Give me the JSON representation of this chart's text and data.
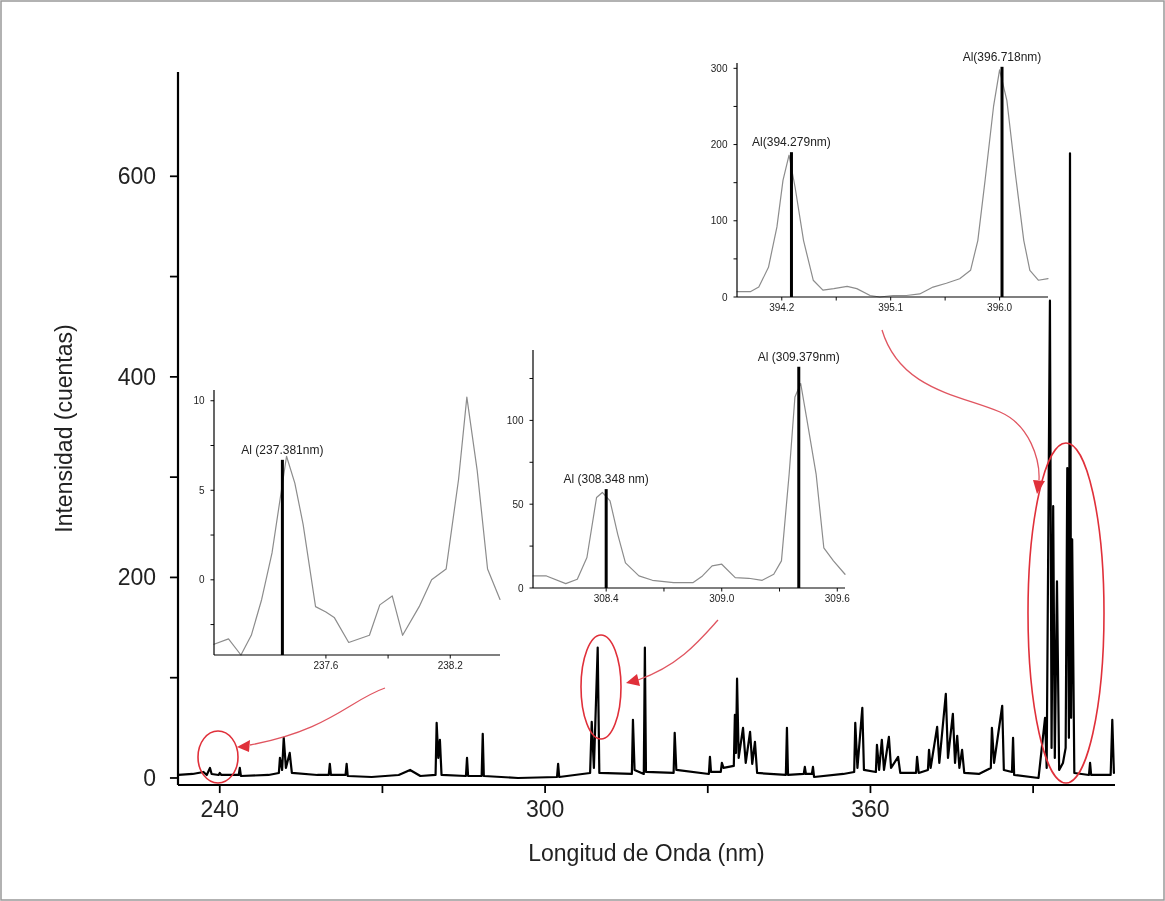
{
  "chart_data": [
    {
      "type": "line",
      "xlabel": "Longitud de Onda (nm)",
      "ylabel": "Intensidad (cuentas)",
      "xlim": [
        232.3,
        405.1
      ],
      "ylim": [
        -7,
        704
      ],
      "xticks": [
        240,
        {
          "value": 270,
          "label": null
        },
        300,
        {
          "value": 330,
          "label": null
        },
        360,
        {
          "value": 390,
          "label": null
        }
      ],
      "yticks": [
        0,
        {
          "value": 100,
          "label": null
        },
        200,
        {
          "value": 300,
          "label": null
        },
        400,
        {
          "value": 500,
          "label": null
        },
        600
      ],
      "series": [
        {
          "color": "#000000",
          "x": [
            232.4,
            235.0,
            237.0,
            237.6,
            238.2,
            238.5,
            239.8,
            240.0,
            240.3,
            243.5,
            243.7,
            243.9,
            249.0,
            250.9,
            251.1,
            251.5,
            251.8,
            252.2,
            252.9,
            253.3,
            258,
            260.1,
            260.3,
            260.5,
            263.2,
            263.4,
            263.6,
            268,
            273,
            275.1,
            277,
            279.8,
            280.0,
            280.3,
            280.6,
            280.9,
            285.4,
            285.6,
            285.8,
            288.3,
            288.5,
            288.7,
            295,
            302.2,
            302.4,
            302.6,
            308.3,
            308.6,
            309.0,
            309.7,
            310.0,
            316.0,
            316.2,
            316.5,
            318.2,
            318.4,
            318.6,
            323.7,
            323.9,
            324.2,
            330.2,
            330.4,
            330.6,
            332.4,
            332.6,
            332.9,
            334.8,
            335.0,
            335.2,
            335.4,
            335.7,
            336.5,
            337.0,
            337.8,
            338.2,
            338.7,
            339.1,
            344.4,
            344.6,
            344.8,
            347.7,
            347.9,
            348.1,
            349.2,
            349.4,
            349.6,
            355,
            357.0,
            357.2,
            357.6,
            358.5,
            358.8,
            361.0,
            361.2,
            361.6,
            362.1,
            362.5,
            363.4,
            363.8,
            365.1,
            365.5,
            368.4,
            368.6,
            368.9,
            370.6,
            370.8,
            371.1,
            372.3,
            372.7,
            373.9,
            374.3,
            375.2,
            375.6,
            376.0,
            376.4,
            376.9,
            377.3,
            380,
            382.2,
            382.4,
            382.8,
            384.3,
            384.6,
            386.1,
            386.3,
            386.5,
            391,
            392.2,
            392.5,
            393.1,
            393.4,
            393.7,
            394.0,
            394.4,
            394.8,
            395.5,
            396.0,
            396.3,
            396.6,
            396.8,
            397.0,
            397.2,
            397.6,
            400.3,
            400.5,
            400.7,
            404.3,
            404.6,
            404.9
          ],
          "values": [
            3,
            4,
            6,
            3,
            10,
            4,
            3,
            5,
            3,
            3,
            10,
            2,
            3,
            5,
            20,
            8,
            40,
            10,
            25,
            5,
            3,
            3,
            14,
            3,
            3,
            14,
            2,
            1,
            3,
            8,
            2,
            3,
            55,
            20,
            38,
            3,
            2,
            20,
            2,
            2,
            44,
            2,
            0,
            1,
            14,
            1,
            5,
            56,
            10,
            130,
            5,
            4,
            58,
            8,
            4,
            130,
            6,
            5,
            45,
            8,
            4,
            21,
            6,
            6,
            15,
            10,
            12,
            63,
            25,
            99,
            20,
            50,
            15,
            46,
            14,
            36,
            5,
            3,
            50,
            3,
            4,
            11,
            4,
            4,
            11,
            1,
            4,
            6,
            55,
            10,
            70,
            8,
            6,
            33,
            8,
            38,
            8,
            41,
            10,
            21,
            5,
            5,
            21,
            5,
            8,
            28,
            10,
            51,
            15,
            84,
            20,
            64,
            15,
            42,
            10,
            28,
            5,
            4,
            10,
            50,
            15,
            72,
            8,
            6,
            40,
            3,
            0,
            60,
            10,
            476,
            30,
            271,
            20,
            196,
            8,
            15,
            30,
            309,
            40,
            623,
            60,
            238,
            5,
            3,
            15,
            3,
            3,
            58,
            5
          ]
        }
      ]
    },
    {
      "type": "line",
      "xlim": [
        237.06,
        238.44
      ],
      "ylim": [
        -4.2,
        10.6
      ],
      "xticks": [
        237.6,
        {
          "value": 237.9,
          "label": null
        },
        238.2
      ],
      "yticks": [
        {
          "value": -2.5,
          "label": null
        },
        0,
        {
          "value": 2.5,
          "label": null
        },
        5,
        {
          "value": 7.5,
          "label": null
        },
        10
      ],
      "annotations": [
        {
          "text": "Al (237.381nm)",
          "x": 237.39,
          "y": 6.7
        }
      ],
      "series": [
        {
          "color": "#8c8c8c",
          "x": [
            237.06,
            237.13,
            237.19,
            237.24,
            237.29,
            237.34,
            237.41,
            237.45,
            237.49,
            237.55,
            237.6,
            237.64,
            237.71,
            237.81,
            237.86,
            237.92,
            237.97,
            238.05,
            238.11,
            238.18,
            238.24,
            238.28,
            238.33,
            238.38,
            238.44
          ],
          "values": [
            -3.6,
            -3.3,
            -4.2,
            -3.1,
            -1.1,
            1.5,
            6.9,
            5.4,
            3.1,
            -1.5,
            -1.8,
            -2.1,
            -3.5,
            -3.1,
            -1.4,
            -0.9,
            -3.1,
            -1.5,
            0,
            0.6,
            5.6,
            10.2,
            6.1,
            0.6,
            -1.1
          ]
        },
        {
          "type": "bar",
          "color": "#000000",
          "x": [
            237.39
          ],
          "base": [
            -4.2
          ],
          "values": [
            10.9
          ]
        }
      ]
    },
    {
      "type": "line",
      "xlim": [
        308.02,
        309.64
      ],
      "ylim": [
        0,
        142
      ],
      "xticks": [
        308.4,
        {
          "value": 308.7,
          "label": null
        },
        {
          "value": 309,
          "label": "309.0"
        },
        {
          "value": 309.3,
          "label": null
        },
        309.6
      ],
      "yticks": [
        0,
        {
          "value": 25,
          "label": null
        },
        50,
        {
          "value": 75,
          "label": null
        },
        100,
        {
          "value": 125,
          "label": null
        }
      ],
      "annotations": [
        {
          "text": "Al (308.348 nm)",
          "x": 308.4,
          "y": 59
        },
        {
          "text": "Al (309.379nm)",
          "x": 309.4,
          "y": 132
        }
      ],
      "series": [
        {
          "color": "#8c8c8c",
          "x": [
            308.02,
            308.09,
            308.19,
            308.25,
            308.3,
            308.35,
            308.38,
            308.42,
            308.46,
            308.5,
            308.57,
            308.64,
            308.75,
            308.85,
            308.9,
            308.95,
            309.0,
            309.07,
            309.14,
            309.21,
            309.27,
            309.31,
            309.35,
            309.38,
            309.41,
            309.44,
            309.49,
            309.53,
            309.58,
            309.64
          ],
          "values": [
            7.2,
            7.2,
            2.6,
            5.2,
            18.2,
            54,
            57,
            52,
            32,
            15,
            7.2,
            4.6,
            3.2,
            3.2,
            7.2,
            13.2,
            14.2,
            6.2,
            5.8,
            4.6,
            8.2,
            16.2,
            68,
            114,
            122,
            102,
            68,
            24,
            16.2,
            8.2
          ]
        },
        {
          "type": "bar",
          "color": "#000000",
          "x": [
            308.4,
            309.4
          ],
          "values": [
            59,
            132
          ]
        }
      ]
    },
    {
      "type": "line",
      "xlim": [
        393.83,
        396.4
      ],
      "ylim": [
        0,
        307
      ],
      "xticks": [
        394.2,
        {
          "value": 394.65,
          "label": null
        },
        395.1,
        {
          "value": 395.55,
          "label": null
        },
        {
          "value": 396,
          "label": "396.0"
        }
      ],
      "yticks": [
        0,
        {
          "value": 50,
          "label": null
        },
        100,
        {
          "value": 150,
          "label": null
        },
        200,
        {
          "value": 250,
          "label": null
        },
        300
      ],
      "annotations": [
        {
          "text": "Al(394.279nm)",
          "x": 394.28,
          "y": 190
        },
        {
          "text": "Al(396.718nm)",
          "x": 396.02,
          "y": 302
        }
      ],
      "series": [
        {
          "color": "#8c8c8c",
          "x": [
            393.83,
            393.94,
            394.01,
            394.09,
            394.16,
            394.21,
            394.26,
            394.31,
            394.38,
            394.46,
            394.54,
            394.63,
            394.74,
            394.82,
            394.93,
            395.01,
            395.12,
            395.23,
            395.34,
            395.45,
            395.56,
            395.67,
            395.76,
            395.82,
            395.88,
            395.95,
            396.0,
            396.06,
            396.13,
            396.2,
            396.25,
            396.32,
            396.4
          ],
          "values": [
            7,
            7,
            13,
            39,
            92,
            153,
            186,
            144,
            74,
            22,
            9,
            11,
            14,
            11,
            2,
            0,
            2,
            2,
            4,
            13,
            18,
            24,
            35,
            74,
            153,
            250,
            298,
            258,
            162,
            74,
            35,
            22,
            24
          ]
        },
        {
          "type": "bar",
          "color": "#000000",
          "x": [
            394.28,
            396.02
          ],
          "values": [
            190,
            302
          ]
        }
      ]
    }
  ]
}
